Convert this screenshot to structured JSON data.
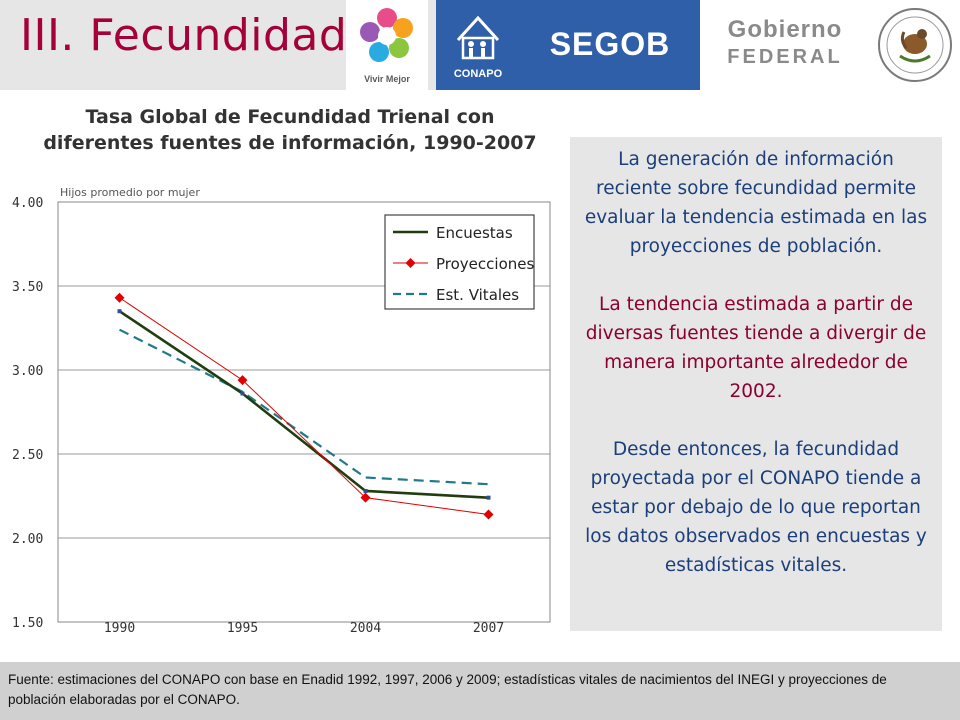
{
  "slide": {
    "title": "III. Fecundidad"
  },
  "logos": {
    "vivir_mejor": "Vivir Mejor",
    "conapo": "CONAPO",
    "segob": "SEGOB",
    "gobierno_line1": "Gobierno",
    "gobierno_line2": "FEDERAL"
  },
  "text_box": {
    "p1": "La generación de información reciente sobre fecundidad permite evaluar la tendencia estimada en las proyecciones de población.",
    "p2": "La tendencia estimada a partir de diversas fuentes tiende a divergir de manera importante alrededor de 2002.",
    "p3": "Desde entonces, la fecundidad proyectada por el CONAPO tiende a estar por debajo de lo que reportan los datos observados en encuestas y estadísticas vitales."
  },
  "footer": "Fuente: estimaciones del CONAPO con base en Enadid 1992, 1997, 2006 y 2009; estadísticas vitales de nacimientos del INEGI y proyecciones de población elaboradas por el CONAPO.",
  "chart_data": {
    "type": "line",
    "title": "Tasa Global de Fecundidad Trienal con diferentes fuentes de información, 1990-2007",
    "ylabel": "Hijos promedio por mujer",
    "categories": [
      "1990",
      "1995",
      "2004",
      "2007"
    ],
    "ylim": [
      1.5,
      4.0
    ],
    "yticks": [
      "4.00",
      "3.50",
      "3.00",
      "2.50",
      "2.00",
      "1.50"
    ],
    "legend_position": "top-right",
    "series": [
      {
        "name": "Encuestas",
        "values": [
          3.35,
          2.86,
          2.28,
          2.24
        ],
        "color": "#1f3d0f",
        "style": "solid"
      },
      {
        "name": "Proyecciones",
        "values": [
          3.43,
          2.94,
          2.24,
          2.14
        ],
        "color": "#e00000",
        "style": "marker-diamond"
      },
      {
        "name": "Est. Vitales",
        "values": [
          3.24,
          2.87,
          2.36,
          2.32
        ],
        "color": "#1f7a8c",
        "style": "dashed"
      }
    ]
  }
}
